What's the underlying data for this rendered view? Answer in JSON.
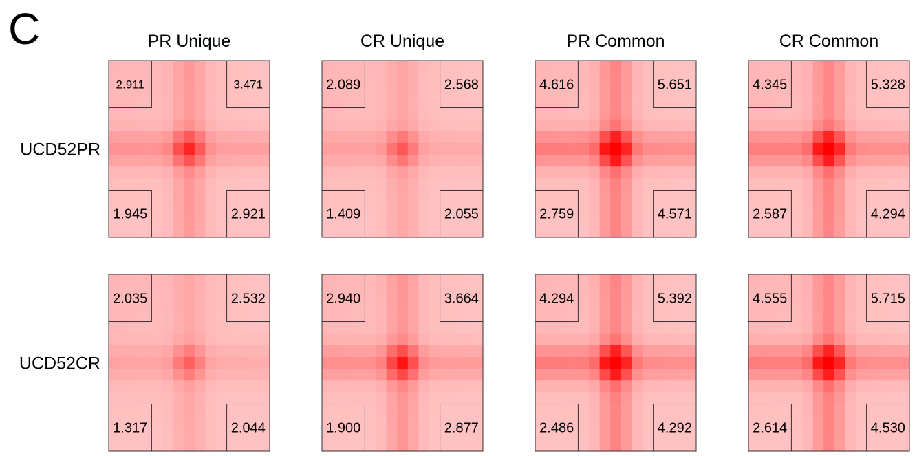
{
  "panel_label": "C",
  "chart_data": {
    "type": "heatmap",
    "columns": [
      "PR Unique",
      "CR Unique",
      "PR Common",
      "CR Common"
    ],
    "rows": [
      "UCD52PR",
      "UCD52CR"
    ],
    "grid_size": [
      15,
      15
    ],
    "corner_order": [
      "top-left",
      "top-right",
      "bottom-left",
      "bottom-right"
    ],
    "colormap": [
      "#ffffff",
      "#ff0000"
    ],
    "panels": [
      {
        "row": "UCD52PR",
        "column": "PR Unique",
        "corners": [
          "2.911",
          "3.471",
          "1.945",
          "2.921"
        ],
        "peak": 0.62
      },
      {
        "row": "UCD52PR",
        "column": "CR Unique",
        "corners": [
          "2.089",
          "2.568",
          "1.409",
          "2.055"
        ],
        "peak": 0.42
      },
      {
        "row": "UCD52PR",
        "column": "PR Common",
        "corners": [
          "4.616",
          "5.651",
          "2.759",
          "4.571"
        ],
        "peak": 0.95
      },
      {
        "row": "UCD52PR",
        "column": "CR Common",
        "corners": [
          "4.345",
          "5.328",
          "2.587",
          "4.294"
        ],
        "peak": 0.93
      },
      {
        "row": "UCD52CR",
        "column": "PR Unique",
        "corners": [
          "2.035",
          "2.532",
          "1.317",
          "2.044"
        ],
        "peak": 0.38
      },
      {
        "row": "UCD52CR",
        "column": "CR Unique",
        "corners": [
          "2.940",
          "3.664",
          "1.900",
          "2.877"
        ],
        "peak": 0.68
      },
      {
        "row": "UCD52CR",
        "column": "PR Common",
        "corners": [
          "4.294",
          "5.392",
          "2.486",
          "4.292"
        ],
        "peak": 0.95
      },
      {
        "row": "UCD52CR",
        "column": "CR Common",
        "corners": [
          "4.555",
          "5.715",
          "2.614",
          "4.530"
        ],
        "peak": 0.94
      }
    ]
  }
}
